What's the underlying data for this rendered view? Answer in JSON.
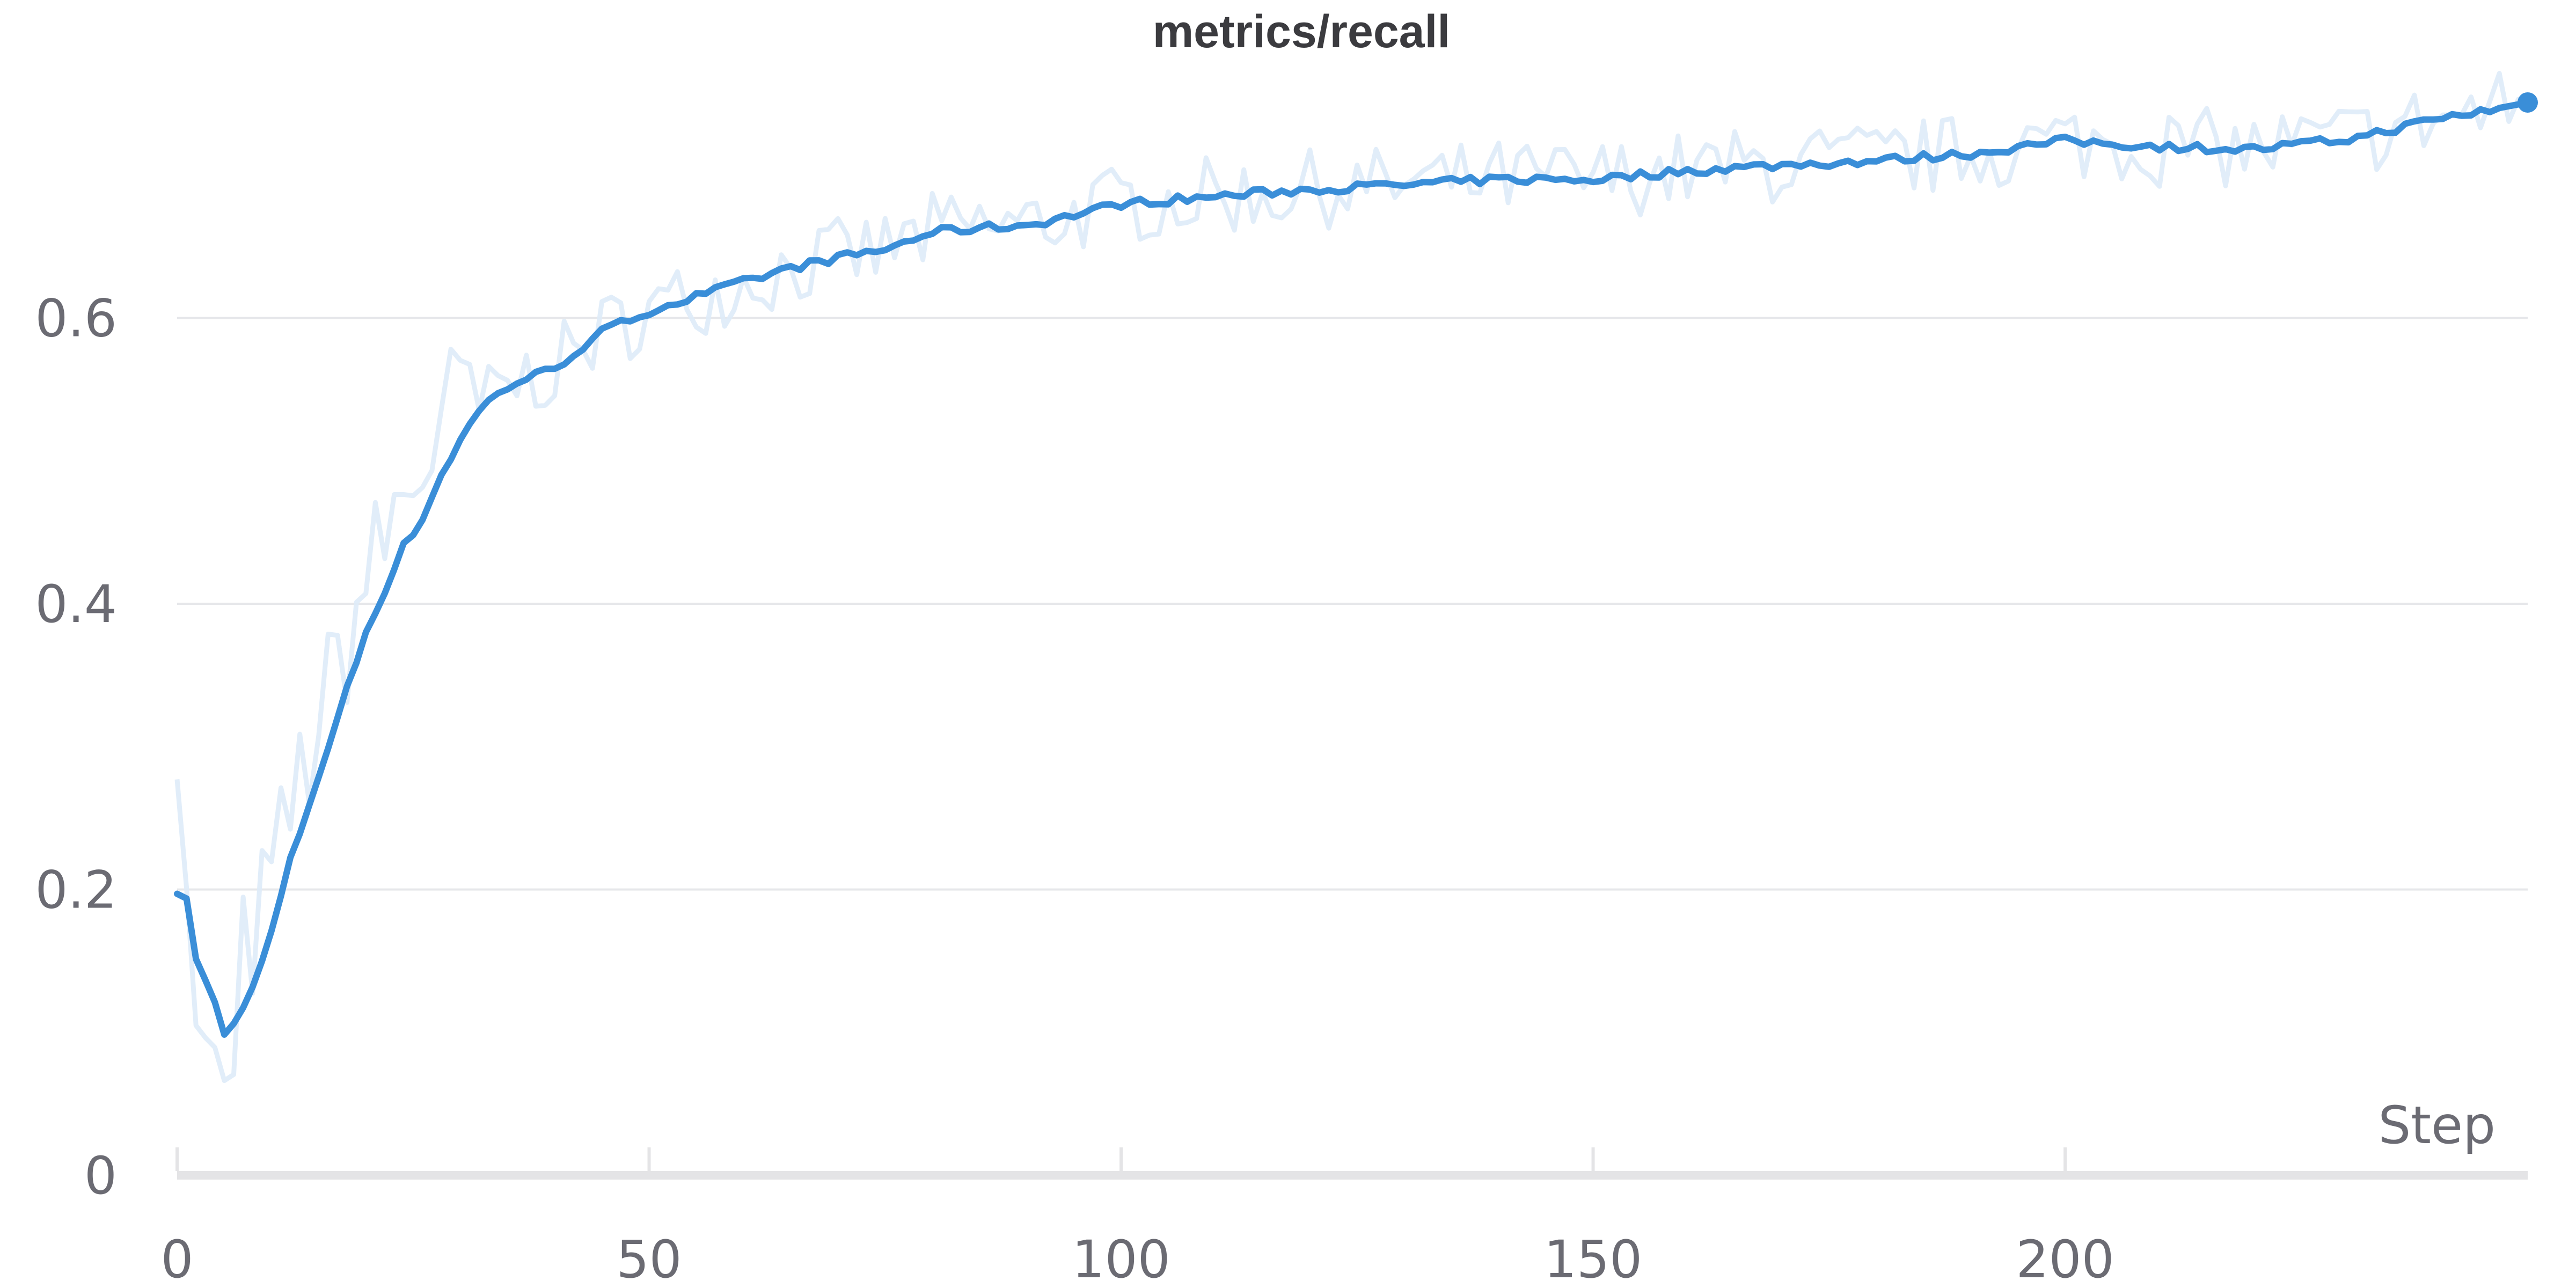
{
  "chart_data": {
    "type": "line",
    "title": "metrics/recall",
    "xlabel": "Step",
    "ylabel": "",
    "xlim": [
      0,
      249
    ],
    "ylim": [
      0,
      0.76
    ],
    "x_ticks": [
      0,
      50,
      100,
      150,
      200
    ],
    "x_tick_labels": [
      "0",
      "50",
      "100",
      "150",
      "200"
    ],
    "y_ticks": [
      0,
      0.2,
      0.4,
      0.6
    ],
    "y_tick_labels": [
      "0",
      "0.2",
      "0.4",
      "0.6"
    ],
    "grid": true,
    "legend": "none",
    "colors": {
      "smoothed": "#3a8ed8",
      "raw": "#deebf8"
    },
    "series_anchors": [
      [
        0,
        0.2
      ],
      [
        1,
        0.195
      ],
      [
        2,
        0.15
      ],
      [
        4,
        0.12
      ],
      [
        5,
        0.1
      ],
      [
        6,
        0.105
      ],
      [
        8,
        0.13
      ],
      [
        10,
        0.17
      ],
      [
        12,
        0.22
      ],
      [
        14,
        0.26
      ],
      [
        16,
        0.3
      ],
      [
        18,
        0.34
      ],
      [
        20,
        0.38
      ],
      [
        22,
        0.41
      ],
      [
        24,
        0.44
      ],
      [
        26,
        0.46
      ],
      [
        28,
        0.49
      ],
      [
        30,
        0.515
      ],
      [
        32,
        0.535
      ],
      [
        34,
        0.548
      ],
      [
        36,
        0.555
      ],
      [
        40,
        0.565
      ],
      [
        45,
        0.59
      ],
      [
        50,
        0.605
      ],
      [
        55,
        0.615
      ],
      [
        60,
        0.625
      ],
      [
        65,
        0.635
      ],
      [
        70,
        0.642
      ],
      [
        75,
        0.648
      ],
      [
        80,
        0.66
      ],
      [
        85,
        0.663
      ],
      [
        90,
        0.665
      ],
      [
        95,
        0.672
      ],
      [
        100,
        0.68
      ],
      [
        110,
        0.685
      ],
      [
        120,
        0.69
      ],
      [
        130,
        0.693
      ],
      [
        140,
        0.697
      ],
      [
        150,
        0.697
      ],
      [
        160,
        0.703
      ],
      [
        170,
        0.707
      ],
      [
        180,
        0.71
      ],
      [
        190,
        0.715
      ],
      [
        200,
        0.724
      ],
      [
        210,
        0.72
      ],
      [
        220,
        0.718
      ],
      [
        230,
        0.725
      ],
      [
        240,
        0.74
      ],
      [
        249,
        0.75
      ]
    ],
    "series": [
      {
        "role": "smoothed",
        "note": "bold line"
      },
      {
        "role": "raw",
        "note": "faint noisy line"
      }
    ]
  }
}
